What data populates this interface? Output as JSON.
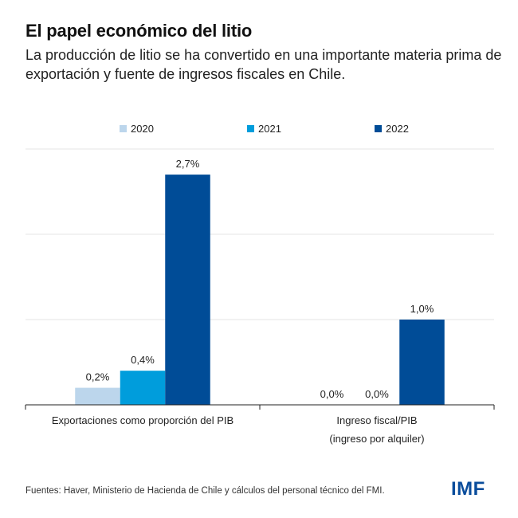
{
  "title": "El papel económico del litio",
  "subtitle": "La producción de litio se ha convertido en una importante materia prima de exportación y fuente de ingresos fiscales en Chile.",
  "source": "Fuentes: Haver, Ministerio de Hacienda de Chile y cálculos del personal técnico del FMI.",
  "logo": "IMF",
  "chart_data": {
    "type": "bar",
    "title": "El papel económico del litio",
    "xlabel": "",
    "ylabel": "",
    "ylim": [
      0,
      3
    ],
    "grid": true,
    "gridlines": [
      1,
      2,
      3
    ],
    "legend_position": "top",
    "categories": [
      [
        "Exportaciones como proporción del PIB"
      ],
      [
        "Ingreso fiscal/PIB",
        "(ingreso por alquiler)"
      ]
    ],
    "series": [
      {
        "name": "2020",
        "color": "#bcd6ec",
        "values": [
          0.2,
          0.0
        ],
        "labels": [
          "0,2%",
          "0,0%"
        ]
      },
      {
        "name": "2021",
        "color": "#009ddc",
        "values": [
          0.4,
          0.0
        ],
        "labels": [
          "0,4%",
          "0,0%"
        ]
      },
      {
        "name": "2022",
        "color": "#004c97",
        "values": [
          2.7,
          1.0
        ],
        "labels": [
          "2,7%",
          "1,0%"
        ]
      }
    ]
  }
}
